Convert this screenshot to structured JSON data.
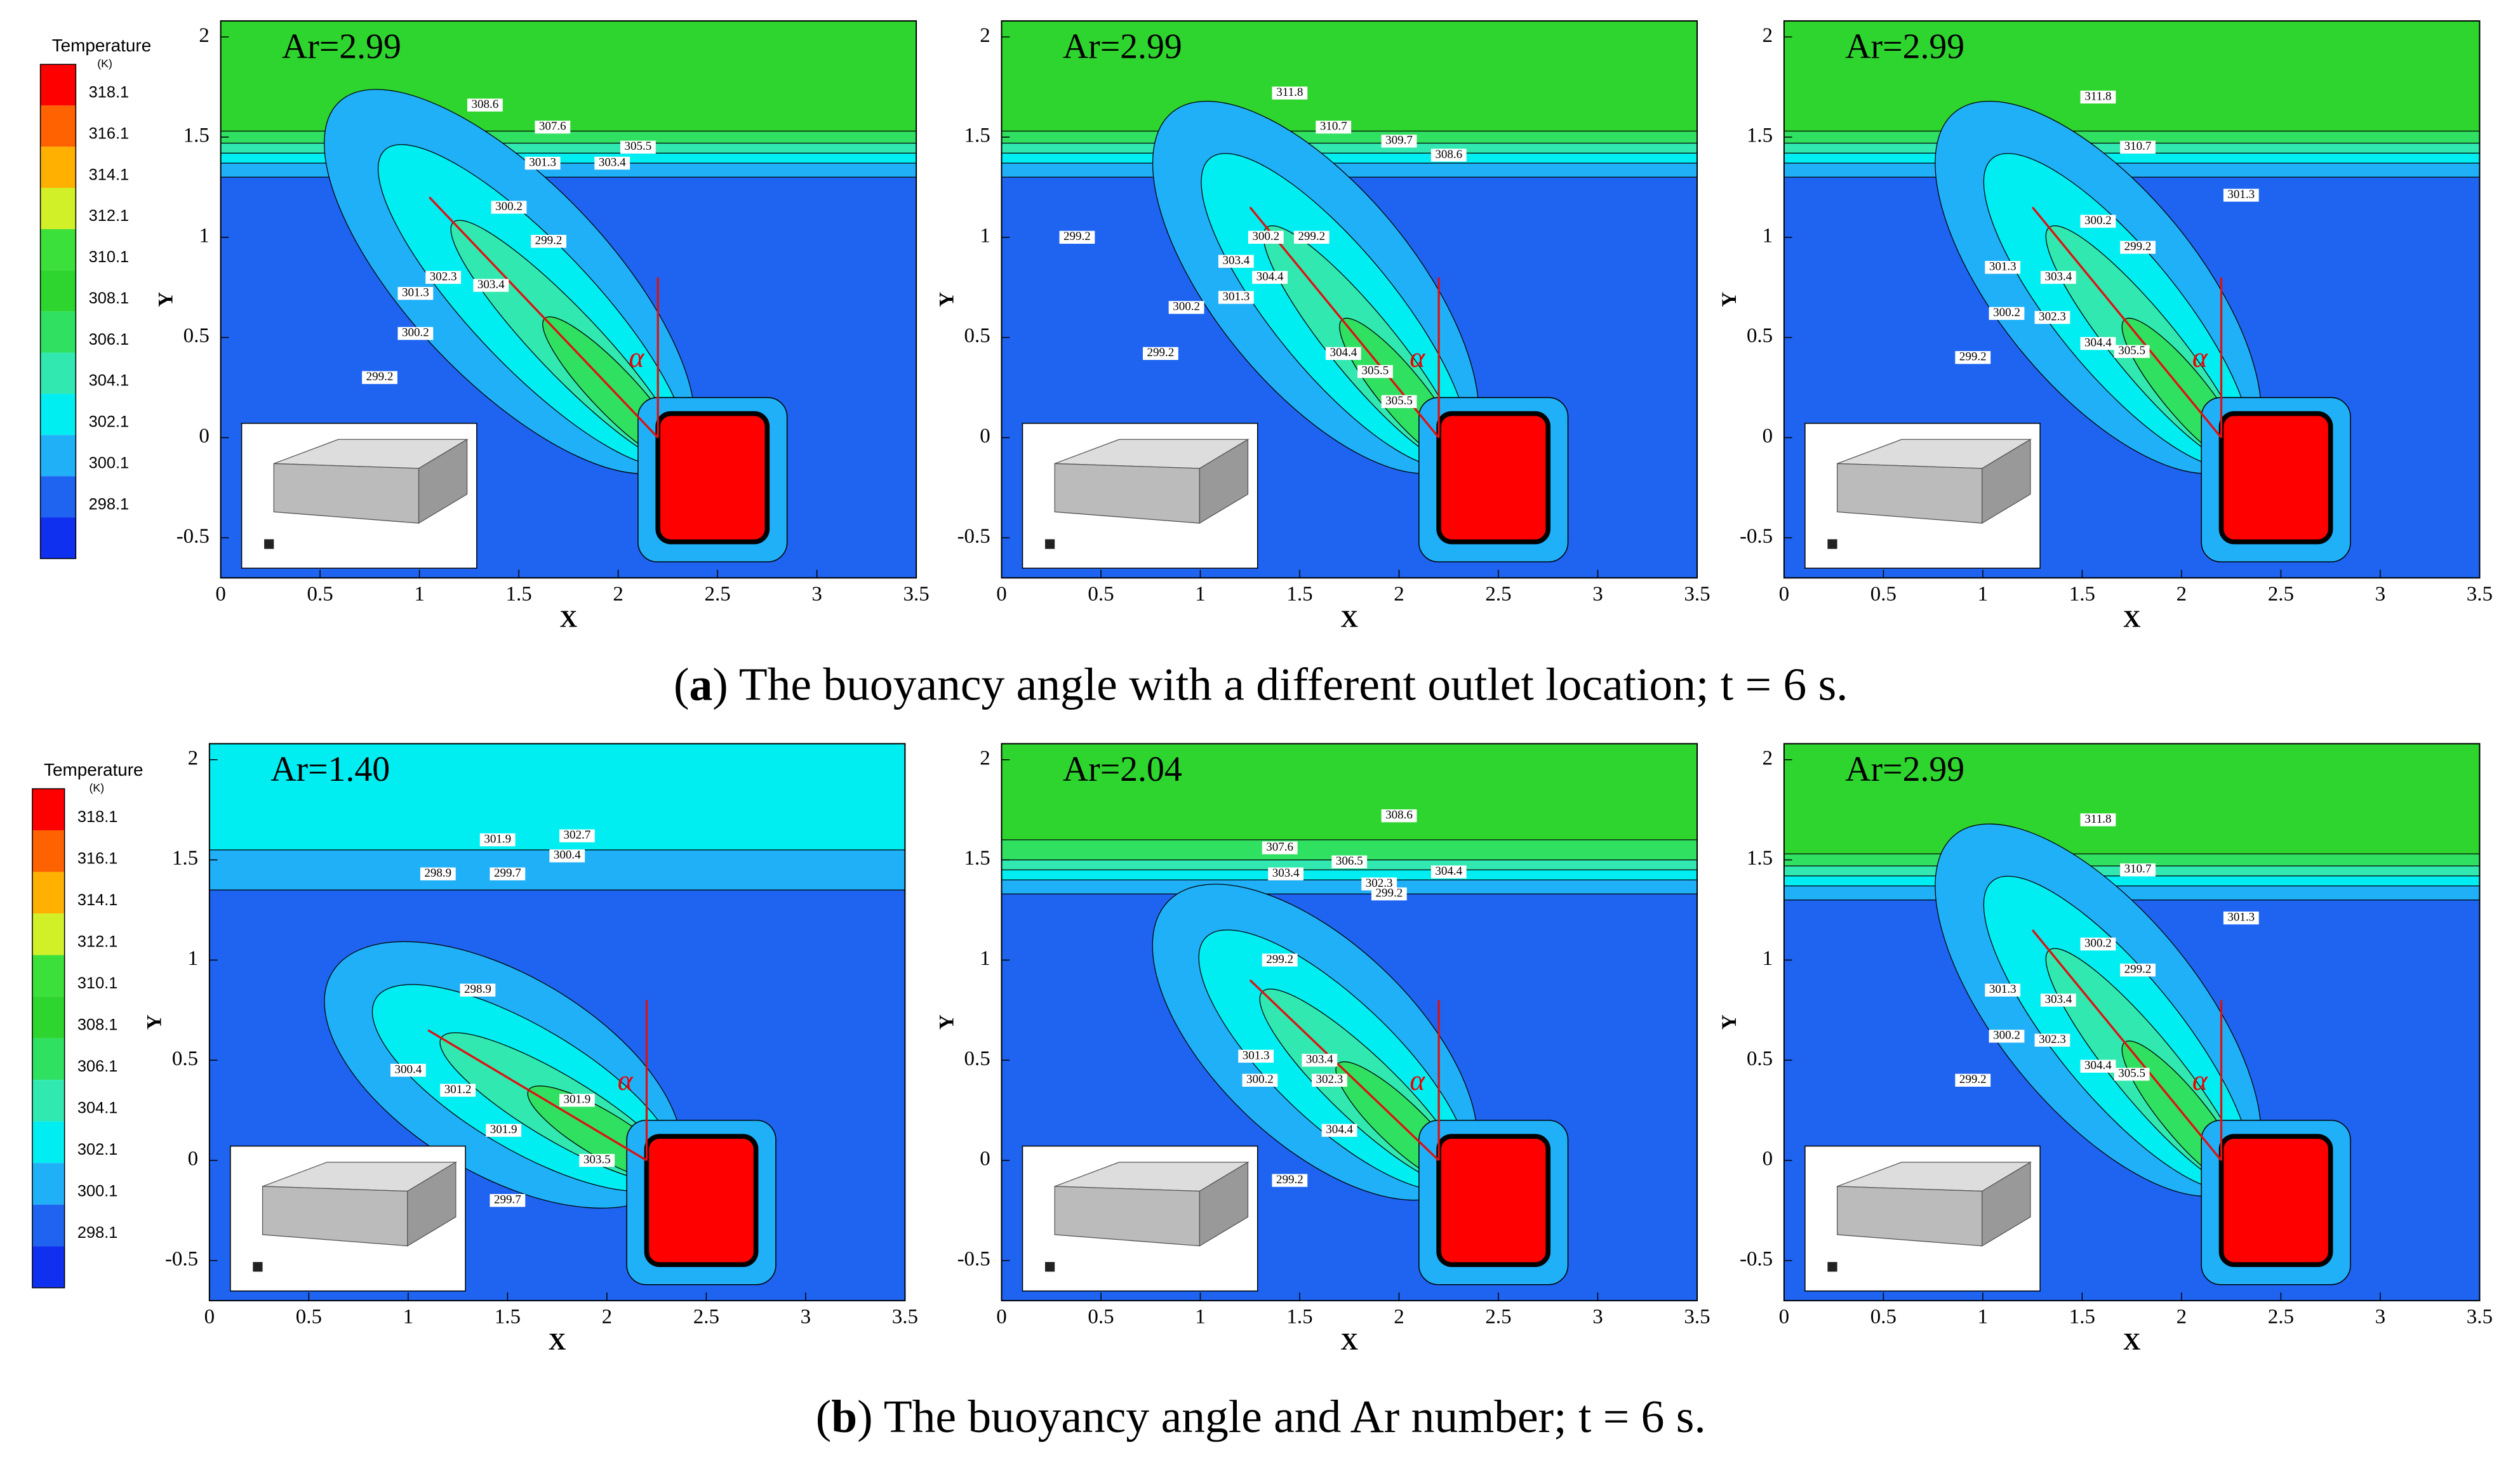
{
  "chart_data": [
    {
      "type": "contour",
      "title": "Ar=2.99",
      "xlabel": "X",
      "ylabel": "Y",
      "xlim": [
        0,
        3.5
      ],
      "ylim": [
        -0.7,
        2.08
      ],
      "xticks": [
        0,
        0.5,
        1,
        1.5,
        2,
        2.5,
        3,
        3.5
      ],
      "yticks": [
        -0.5,
        0,
        0.5,
        1,
        1.5,
        2
      ],
      "angle_symbol": "α",
      "contour_labels": [
        308.6,
        307.6,
        305.5,
        303.4,
        301.3,
        300.2,
        299.2,
        302.3,
        303.4,
        301.3,
        300.2,
        299.2
      ]
    },
    {
      "type": "contour",
      "title": "Ar=2.99",
      "xlabel": "X",
      "ylabel": "Y",
      "xlim": [
        0,
        3.5
      ],
      "ylim": [
        -0.7,
        2.08
      ],
      "xticks": [
        0,
        0.5,
        1,
        1.5,
        2,
        2.5,
        3,
        3.5
      ],
      "yticks": [
        -0.5,
        0,
        0.5,
        1,
        1.5,
        2
      ],
      "angle_symbol": "α",
      "contour_labels": [
        311.8,
        310.7,
        309.7,
        308.6,
        299.2,
        300.2,
        299.2,
        303.4,
        304.4,
        301.3,
        300.2,
        299.2,
        304.4,
        305.5,
        305.5
      ]
    },
    {
      "type": "contour",
      "title": "Ar=2.99",
      "xlabel": "X",
      "ylabel": "Y",
      "xlim": [
        0,
        3.5
      ],
      "ylim": [
        -0.7,
        2.08
      ],
      "xticks": [
        0,
        0.5,
        1,
        1.5,
        2,
        2.5,
        3,
        3.5
      ],
      "yticks": [
        -0.5,
        0,
        0.5,
        1,
        1.5,
        2
      ],
      "angle_symbol": "α",
      "contour_labels": [
        311.8,
        310.7,
        301.3,
        300.2,
        299.2,
        301.3,
        303.4,
        302.3,
        300.2,
        299.2,
        304.4,
        305.5
      ]
    },
    {
      "type": "contour",
      "title": "Ar=1.40",
      "xlabel": "X",
      "ylabel": "Y",
      "xlim": [
        0,
        3.5
      ],
      "ylim": [
        -0.7,
        2.08
      ],
      "xticks": [
        0,
        0.5,
        1,
        1.5,
        2,
        2.5,
        3,
        3.5
      ],
      "yticks": [
        -0.5,
        0,
        0.5,
        1,
        1.5,
        2
      ],
      "angle_symbol": "α",
      "contour_labels": [
        302.7,
        301.9,
        300.4,
        299.7,
        298.9,
        298.9,
        300.4,
        301.2,
        301.9,
        301.9,
        303.5,
        299.7
      ]
    },
    {
      "type": "contour",
      "title": "Ar=2.04",
      "xlabel": "X",
      "ylabel": "Y",
      "xlim": [
        0,
        3.5
      ],
      "ylim": [
        -0.7,
        2.08
      ],
      "xticks": [
        0,
        0.5,
        1,
        1.5,
        2,
        2.5,
        3,
        3.5
      ],
      "yticks": [
        -0.5,
        0,
        0.5,
        1,
        1.5,
        2
      ],
      "angle_symbol": "α",
      "contour_labels": [
        308.6,
        307.6,
        306.5,
        304.4,
        303.4,
        302.3,
        299.2,
        299.2,
        301.3,
        300.2,
        303.4,
        302.3,
        304.4,
        299.2
      ]
    },
    {
      "type": "contour",
      "title": "Ar=2.99",
      "xlabel": "X",
      "ylabel": "Y",
      "xlim": [
        0,
        3.5
      ],
      "ylim": [
        -0.7,
        2.08
      ],
      "xticks": [
        0,
        0.5,
        1,
        1.5,
        2,
        2.5,
        3,
        3.5
      ],
      "yticks": [
        -0.5,
        0,
        0.5,
        1,
        1.5,
        2
      ],
      "angle_symbol": "α",
      "contour_labels": [
        311.8,
        310.7,
        301.3,
        300.2,
        299.2,
        301.3,
        303.4,
        302.3,
        300.2,
        299.2,
        304.4,
        305.5
      ]
    }
  ],
  "colorbars": [
    {
      "title": "Temperature",
      "unit": "(K)",
      "levels": [
        318.1,
        316.1,
        314.1,
        312.1,
        310.1,
        308.1,
        306.1,
        304.1,
        302.1,
        300.1,
        298.1
      ],
      "colors": [
        "#ff0000",
        "#ff6200",
        "#ffb000",
        "#d2f028",
        "#3be03b",
        "#2ed52e",
        "#30e060",
        "#30e8b0",
        "#00eef2",
        "#20b0f8",
        "#1e64f0",
        "#1030f0"
      ]
    },
    {
      "title": "Temperature",
      "unit": "(K)",
      "levels": [
        318.1,
        316.1,
        314.1,
        312.1,
        310.1,
        308.1,
        306.1,
        304.1,
        302.1,
        300.1,
        298.1
      ],
      "colors": [
        "#ff0000",
        "#ff6200",
        "#ffb000",
        "#d2f028",
        "#3be03b",
        "#2ed52e",
        "#30e060",
        "#30e8b0",
        "#00eef2",
        "#20b0f8",
        "#1e64f0",
        "#1030f0"
      ]
    }
  ],
  "captions": [
    [
      "(",
      "a",
      ") The buoyancy angle with a different outlet location; t = 6 s."
    ],
    [
      "(",
      "b",
      ") The buoyancy angle and Ar number; t = 6 s."
    ]
  ]
}
